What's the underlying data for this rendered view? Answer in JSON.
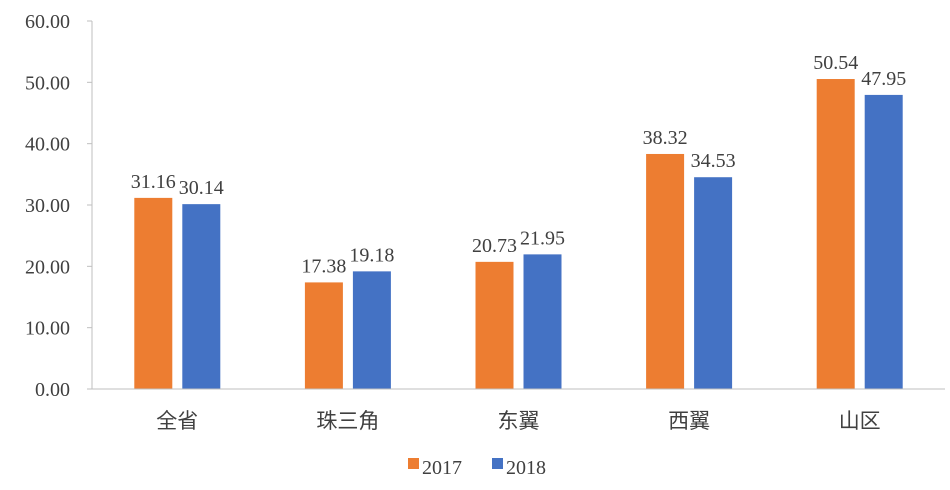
{
  "chart_data": {
    "type": "bar",
    "categories": [
      "全省",
      "珠三角",
      "东翼",
      "西翼",
      "山区"
    ],
    "series": [
      {
        "name": "2017",
        "color": "#ED7D31",
        "values": [
          31.16,
          17.38,
          20.73,
          38.32,
          50.54
        ]
      },
      {
        "name": "2018",
        "color": "#4472C4",
        "values": [
          30.14,
          19.18,
          21.95,
          34.53,
          47.95
        ]
      }
    ],
    "yticks": [
      "0.00",
      "10.00",
      "20.00",
      "30.00",
      "40.00",
      "50.00",
      "60.00"
    ],
    "ylim": [
      0,
      60
    ],
    "grid": false,
    "legend": "bottom",
    "title": "",
    "xlabel": "",
    "ylabel": ""
  }
}
